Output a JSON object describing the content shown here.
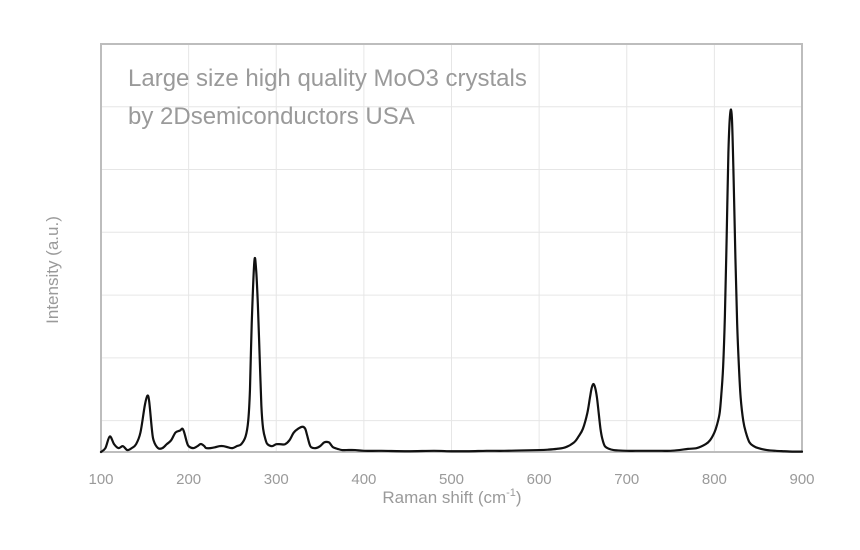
{
  "chart_data": {
    "type": "line",
    "title": "",
    "annotation": {
      "line1": "Large size high quality MoO3 crystals",
      "line2": "by 2Dsemiconductors USA"
    },
    "xlabel": "Raman shift (cm",
    "xlabel_sup": "-1",
    "xlabel_close": ")",
    "ylabel": "Intensity (a.u.)",
    "xlim": [
      100,
      900
    ],
    "ylim": [
      0,
      1.05
    ],
    "x_ticks": [
      "100",
      "200",
      "300",
      "400",
      "500",
      "600",
      "700",
      "800",
      "900"
    ],
    "x_tick_values": [
      100,
      200,
      300,
      400,
      500,
      600,
      700,
      800,
      900
    ],
    "y_ticks_labeled": false,
    "grid": true,
    "legend": "none",
    "line_color": "#111111",
    "grid_color": "#e6e6e6",
    "frame_color": "#bdbdbd",
    "series": [
      {
        "x": [
          100,
          105,
          110,
          115,
          120,
          125,
          130,
          135,
          140,
          145,
          150,
          153,
          155,
          158,
          160,
          165,
          170,
          175,
          180,
          185,
          190,
          193,
          195,
          198,
          200,
          205,
          210,
          213,
          215,
          218,
          220,
          225,
          230,
          235,
          240,
          245,
          250,
          255,
          260,
          265,
          268,
          270,
          272,
          275,
          277,
          279,
          281,
          283,
          285,
          288,
          290,
          295,
          300,
          305,
          310,
          315,
          320,
          325,
          330,
          333,
          335,
          338,
          340,
          345,
          350,
          355,
          360,
          362,
          365,
          370,
          375,
          380,
          390,
          400,
          420,
          450,
          480,
          500,
          520,
          540,
          560,
          580,
          600,
          610,
          620,
          630,
          640,
          645,
          650,
          655,
          658,
          660,
          662,
          664,
          666,
          668,
          670,
          672,
          675,
          680,
          685,
          690,
          700,
          710,
          720,
          730,
          740,
          750,
          760,
          770,
          780,
          790,
          795,
          800,
          803,
          806,
          808,
          810,
          812,
          814,
          816,
          818,
          820,
          822,
          824,
          826,
          828,
          830,
          833,
          836,
          840,
          845,
          850,
          860,
          870,
          880,
          890,
          900
        ],
        "y": [
          0.0,
          0.01,
          0.04,
          0.02,
          0.01,
          0.015,
          0.005,
          0.01,
          0.02,
          0.05,
          0.12,
          0.145,
          0.13,
          0.06,
          0.03,
          0.01,
          0.01,
          0.02,
          0.03,
          0.05,
          0.055,
          0.06,
          0.05,
          0.025,
          0.015,
          0.01,
          0.015,
          0.02,
          0.02,
          0.015,
          0.01,
          0.01,
          0.012,
          0.015,
          0.015,
          0.012,
          0.01,
          0.015,
          0.02,
          0.04,
          0.08,
          0.16,
          0.33,
          0.49,
          0.47,
          0.38,
          0.25,
          0.12,
          0.06,
          0.03,
          0.02,
          0.015,
          0.02,
          0.02,
          0.02,
          0.03,
          0.05,
          0.06,
          0.065,
          0.06,
          0.045,
          0.02,
          0.012,
          0.01,
          0.015,
          0.025,
          0.025,
          0.02,
          0.012,
          0.008,
          0.005,
          0.005,
          0.005,
          0.003,
          0.003,
          0.002,
          0.003,
          0.002,
          0.002,
          0.003,
          0.003,
          0.004,
          0.005,
          0.006,
          0.008,
          0.012,
          0.025,
          0.04,
          0.06,
          0.1,
          0.14,
          0.165,
          0.175,
          0.165,
          0.14,
          0.1,
          0.06,
          0.035,
          0.015,
          0.008,
          0.005,
          0.004,
          0.003,
          0.003,
          0.003,
          0.003,
          0.003,
          0.003,
          0.005,
          0.008,
          0.01,
          0.02,
          0.03,
          0.05,
          0.07,
          0.1,
          0.15,
          0.22,
          0.35,
          0.55,
          0.77,
          0.87,
          0.86,
          0.7,
          0.5,
          0.33,
          0.22,
          0.14,
          0.08,
          0.05,
          0.025,
          0.015,
          0.01,
          0.005,
          0.003,
          0.002,
          0.001,
          0.001
        ]
      }
    ]
  }
}
